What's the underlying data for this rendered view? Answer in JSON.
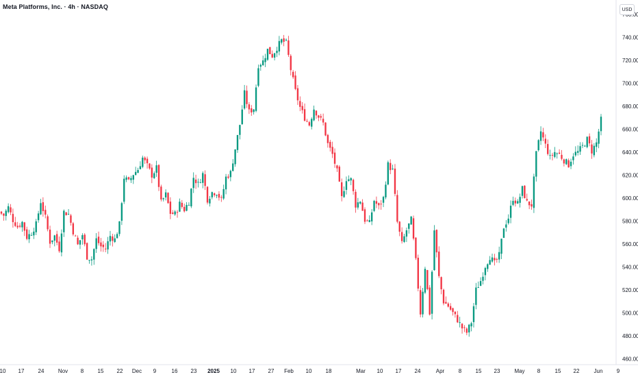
{
  "header": {
    "title": "Meta Platforms, Inc. · 4h · NASDAQ",
    "currency": "USD"
  },
  "colors": {
    "up": "#089981",
    "down": "#f23645",
    "axis_text": "#131722",
    "axis_line": "#e0e3eb"
  },
  "chart_data": {
    "type": "candlestick",
    "title": "Meta Platforms, Inc. · 4h · NASDAQ",
    "interval": "4h",
    "exchange": "NASDAQ",
    "currency": "USD",
    "ylim": [
      455,
      770
    ],
    "grid": false,
    "y_ticks": [
      460,
      480,
      500,
      520,
      540,
      560,
      580,
      600,
      620,
      640,
      660,
      680,
      700,
      720,
      740,
      760
    ],
    "y_tick_labels": [
      "460.00",
      "480.00",
      "500.00",
      "520.00",
      "540.00",
      "560.00",
      "580.00",
      "600.00",
      "620.00",
      "640.00",
      "660.00",
      "680.00",
      "700.00",
      "720.00",
      "740.00",
      "760.00"
    ],
    "x_tick_labels": [
      {
        "label": "10",
        "bold": false
      },
      {
        "label": "17",
        "bold": false
      },
      {
        "label": "24",
        "bold": false
      },
      {
        "label": "Nov",
        "bold": false
      },
      {
        "label": "8",
        "bold": false
      },
      {
        "label": "15",
        "bold": false
      },
      {
        "label": "22",
        "bold": false
      },
      {
        "label": "Dec",
        "bold": false
      },
      {
        "label": "9",
        "bold": false
      },
      {
        "label": "16",
        "bold": false
      },
      {
        "label": "23",
        "bold": false
      },
      {
        "label": "2025",
        "bold": true
      },
      {
        "label": "10",
        "bold": false
      },
      {
        "label": "17",
        "bold": false
      },
      {
        "label": "27",
        "bold": false
      },
      {
        "label": "Feb",
        "bold": false
      },
      {
        "label": "10",
        "bold": false
      },
      {
        "label": "18",
        "bold": false
      },
      {
        "label": "Mar",
        "bold": false
      },
      {
        "label": "10",
        "bold": false
      },
      {
        "label": "17",
        "bold": false
      },
      {
        "label": "24",
        "bold": false
      },
      {
        "label": "Apr",
        "bold": false
      },
      {
        "label": "8",
        "bold": false
      },
      {
        "label": "15",
        "bold": false
      },
      {
        "label": "23",
        "bold": false
      },
      {
        "label": "May",
        "bold": false
      },
      {
        "label": "8",
        "bold": false
      },
      {
        "label": "15",
        "bold": false
      },
      {
        "label": "22",
        "bold": false
      },
      {
        "label": "Jun",
        "bold": false
      },
      {
        "label": "9",
        "bold": false
      }
    ],
    "close_path": [
      588,
      585,
      592,
      581,
      575,
      579,
      566,
      570,
      577,
      597,
      583,
      562,
      567,
      556,
      588,
      586,
      571,
      559,
      568,
      549,
      547,
      564,
      558,
      556,
      567,
      564,
      577,
      618,
      614,
      621,
      625,
      635,
      628,
      620,
      626,
      596,
      603,
      587,
      586,
      595,
      590,
      597,
      618,
      612,
      621,
      599,
      605,
      605,
      598,
      618,
      622,
      643,
      664,
      691,
      675,
      678,
      716,
      719,
      729,
      724,
      731,
      737,
      735,
      712,
      693,
      679,
      670,
      664,
      678,
      671,
      665,
      647,
      638,
      623,
      600,
      617,
      616,
      594,
      598,
      581,
      578,
      598,
      592,
      600,
      629,
      624,
      579,
      560,
      572,
      581,
      545,
      500,
      540,
      500,
      572,
      531,
      510,
      506,
      500,
      494,
      487,
      483,
      492,
      520,
      528,
      541,
      549,
      543,
      550,
      575,
      583,
      600,
      595,
      608,
      596,
      594,
      638,
      658,
      646,
      635,
      640,
      638,
      633,
      629,
      638,
      640,
      645,
      651,
      641,
      648,
      668
    ]
  }
}
